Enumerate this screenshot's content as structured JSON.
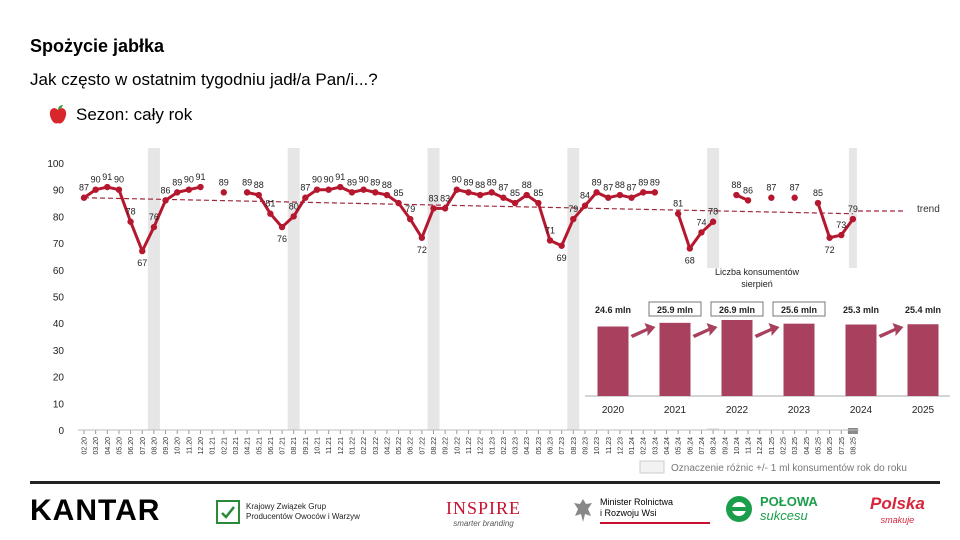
{
  "header": {
    "title": "Spożycie jabłka",
    "subtitle": "Jak często w ostatnim tygodniu jadł/a Pan/i...?",
    "season": "Sezon: cały rok"
  },
  "colors": {
    "series": "#b5182e",
    "trend": "#a0283c",
    "bars": "#a8415e",
    "highlight": "#e6e6e6"
  },
  "chart_data": [
    {
      "type": "line",
      "ylim": [
        0,
        100
      ],
      "yticks": [
        0,
        10,
        20,
        30,
        40,
        50,
        60,
        70,
        80,
        90,
        100
      ],
      "x": [
        "02.20",
        "03.20",
        "04.20",
        "05.20",
        "06.20",
        "07.20",
        "08.20",
        "09.20",
        "10.20",
        "11.20",
        "12.20",
        "01.21",
        "02.21",
        "03.21",
        "04.21",
        "05.21",
        "06.21",
        "07.21",
        "08.21",
        "09.21",
        "10.21",
        "11.21",
        "12.21",
        "01.22",
        "02.22",
        "03.22",
        "04.22",
        "05.22",
        "06.22",
        "07.22",
        "08.22",
        "09.22",
        "10.22",
        "11.22",
        "12.22",
        "01.23",
        "02.23",
        "03.23",
        "04.23",
        "05.23",
        "06.23",
        "07.23",
        "08.23",
        "09.23",
        "10.23",
        "11.23",
        "12.23",
        "01.24",
        "02.24",
        "03.24",
        "04.24",
        "05.24",
        "06.24",
        "07.24",
        "08.24",
        "09.24",
        "10.24",
        "11.24",
        "12.24",
        "01.25",
        "02.25",
        "03.25",
        "04.25",
        "05.25",
        "06.25",
        "07.25",
        "08.25"
      ],
      "series": [
        {
          "values": [
            87,
            90,
            91,
            90,
            78,
            67,
            76,
            86,
            89,
            90,
            91,
            null,
            89,
            null,
            89,
            88,
            81,
            76,
            80,
            87,
            90,
            90,
            91,
            89,
            90,
            89,
            88,
            85,
            79,
            72,
            83,
            83,
            90,
            89,
            88,
            89,
            87,
            85,
            88,
            85,
            71,
            69,
            79,
            84,
            89,
            87,
            88,
            87,
            89,
            89,
            null,
            81,
            68,
            74,
            78,
            null,
            88,
            86,
            null,
            87,
            null,
            87,
            null,
            85,
            72,
            73,
            79
          ]
        }
      ],
      "trend": {
        "label": "trend",
        "start": 87,
        "end": 81
      },
      "highlighted_months": [
        "08.20",
        "08.21",
        "08.22",
        "08.23",
        "08.24",
        "08.25"
      ],
      "legend_note": "Oznaczenie różnic +/- 1 ml konsumentów rok do roku"
    },
    {
      "type": "bar",
      "title": "Liczba konsumentów sierpień",
      "categories": [
        "2020",
        "2021",
        "2022",
        "2023",
        "2024",
        "2025"
      ],
      "values": [
        24.6,
        25.9,
        26.9,
        25.6,
        25.3,
        25.4
      ],
      "value_labels": [
        "24.6 mln",
        "25.9 mln",
        "26.9 mln",
        "25.6 mln",
        "25.3 mln",
        "25.4 mln"
      ],
      "boxed": [
        false,
        true,
        true,
        true,
        false,
        false
      ],
      "arrows_before": [
        false,
        true,
        true,
        true,
        false,
        true
      ]
    }
  ],
  "logos": {
    "kantar": "KANTAR",
    "kzgp": [
      "Krajowy Związek Grup",
      "Producentów Owoców i Warzyw"
    ],
    "inspire": [
      "INSPIRE",
      "smarter branding"
    ],
    "minister": [
      "Minister Rolnictwa",
      "i Rozwoju Wsi"
    ],
    "polowa": [
      "POŁOWA",
      "sukcesu"
    ],
    "polska": [
      "Polska",
      "smakuje"
    ]
  }
}
